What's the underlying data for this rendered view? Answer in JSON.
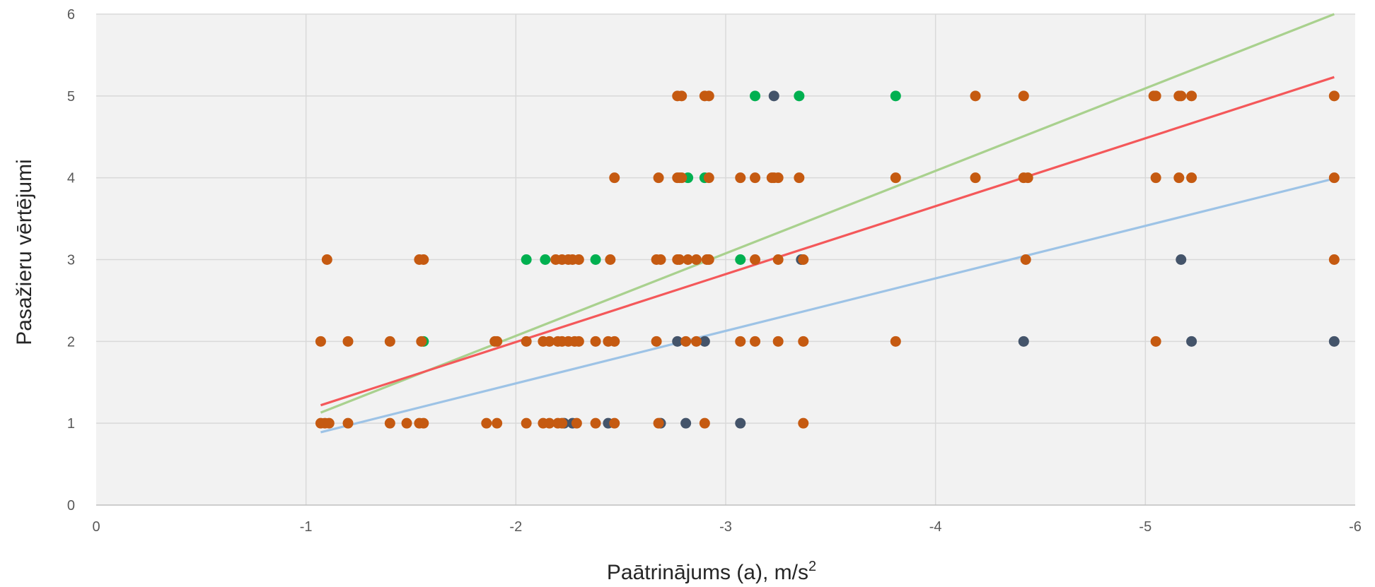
{
  "chart_data": {
    "type": "scatter",
    "title": "",
    "xlabel": "Paātrinājums (a), m/s",
    "xlabel_superscript": "2",
    "ylabel": "Pasažieru vērtējumi",
    "xlim": [
      0,
      -6
    ],
    "ylim": [
      0,
      6
    ],
    "x_ticks": [
      0,
      -1,
      -2,
      -3,
      -4,
      -5,
      -6
    ],
    "y_ticks": [
      0,
      1,
      2,
      3,
      4,
      5,
      6
    ],
    "grid": true,
    "plot_background": "#f2f2f2",
    "gridline_color": "#d9d9d9",
    "series": [
      {
        "color": "#00b050",
        "points": [
          [
            -3.14,
            5
          ],
          [
            -3.35,
            5
          ],
          [
            -3.81,
            5
          ],
          [
            -2.82,
            4
          ],
          [
            -2.9,
            4
          ],
          [
            -2.05,
            3
          ],
          [
            -2.14,
            3
          ],
          [
            -2.38,
            3
          ],
          [
            -3.07,
            3
          ],
          [
            -1.56,
            2
          ]
        ]
      },
      {
        "color": "#44546a",
        "points": [
          [
            -3.23,
            5
          ],
          [
            -3.36,
            3
          ],
          [
            -5.17,
            3
          ],
          [
            -2.77,
            2
          ],
          [
            -2.9,
            2
          ],
          [
            -4.42,
            2
          ],
          [
            -5.22,
            2
          ],
          [
            -5.9,
            2
          ],
          [
            -2.23,
            1
          ],
          [
            -2.27,
            1
          ],
          [
            -2.44,
            1
          ],
          [
            -2.69,
            1
          ],
          [
            -2.81,
            1
          ],
          [
            -3.07,
            1
          ]
        ]
      },
      {
        "color": "#c55a11",
        "points": [
          [
            -2.77,
            5
          ],
          [
            -2.79,
            5
          ],
          [
            -2.9,
            5
          ],
          [
            -2.92,
            5
          ],
          [
            -4.19,
            5
          ],
          [
            -4.42,
            5
          ],
          [
            -5.04,
            5
          ],
          [
            -5.05,
            5
          ],
          [
            -5.16,
            5
          ],
          [
            -5.17,
            5
          ],
          [
            -5.22,
            5
          ],
          [
            -5.9,
            5
          ],
          [
            -2.47,
            4
          ],
          [
            -2.68,
            4
          ],
          [
            -2.77,
            4
          ],
          [
            -2.78,
            4
          ],
          [
            -2.79,
            4
          ],
          [
            -2.92,
            4
          ],
          [
            -3.07,
            4
          ],
          [
            -3.14,
            4
          ],
          [
            -3.22,
            4
          ],
          [
            -3.23,
            4
          ],
          [
            -3.25,
            4
          ],
          [
            -3.35,
            4
          ],
          [
            -3.81,
            4
          ],
          [
            -4.19,
            4
          ],
          [
            -4.42,
            4
          ],
          [
            -4.44,
            4
          ],
          [
            -5.05,
            4
          ],
          [
            -5.16,
            4
          ],
          [
            -5.22,
            4
          ],
          [
            -5.9,
            4
          ],
          [
            -1.1,
            3
          ],
          [
            -1.54,
            3
          ],
          [
            -1.56,
            3
          ],
          [
            -2.19,
            3
          ],
          [
            -2.22,
            3
          ],
          [
            -2.25,
            3
          ],
          [
            -2.27,
            3
          ],
          [
            -2.3,
            3
          ],
          [
            -2.45,
            3
          ],
          [
            -2.67,
            3
          ],
          [
            -2.69,
            3
          ],
          [
            -2.77,
            3
          ],
          [
            -2.78,
            3
          ],
          [
            -2.82,
            3
          ],
          [
            -2.86,
            3
          ],
          [
            -2.91,
            3
          ],
          [
            -2.92,
            3
          ],
          [
            -3.14,
            3
          ],
          [
            -3.25,
            3
          ],
          [
            -3.37,
            3
          ],
          [
            -4.43,
            3
          ],
          [
            -5.9,
            3
          ],
          [
            -1.07,
            2
          ],
          [
            -1.2,
            2
          ],
          [
            -1.4,
            2
          ],
          [
            -1.55,
            2
          ],
          [
            -1.9,
            2
          ],
          [
            -1.91,
            2
          ],
          [
            -2.05,
            2
          ],
          [
            -2.13,
            2
          ],
          [
            -2.16,
            2
          ],
          [
            -2.2,
            2
          ],
          [
            -2.22,
            2
          ],
          [
            -2.25,
            2
          ],
          [
            -2.28,
            2
          ],
          [
            -2.3,
            2
          ],
          [
            -2.38,
            2
          ],
          [
            -2.44,
            2
          ],
          [
            -2.47,
            2
          ],
          [
            -2.67,
            2
          ],
          [
            -2.81,
            2
          ],
          [
            -2.86,
            2
          ],
          [
            -3.07,
            2
          ],
          [
            -3.14,
            2
          ],
          [
            -3.25,
            2
          ],
          [
            -3.37,
            2
          ],
          [
            -3.81,
            2
          ],
          [
            -5.05,
            2
          ],
          [
            -1.07,
            1
          ],
          [
            -1.09,
            1
          ],
          [
            -1.11,
            1
          ],
          [
            -1.2,
            1
          ],
          [
            -1.4,
            1
          ],
          [
            -1.48,
            1
          ],
          [
            -1.54,
            1
          ],
          [
            -1.56,
            1
          ],
          [
            -1.86,
            1
          ],
          [
            -1.91,
            1
          ],
          [
            -2.05,
            1
          ],
          [
            -2.13,
            1
          ],
          [
            -2.16,
            1
          ],
          [
            -2.2,
            1
          ],
          [
            -2.22,
            1
          ],
          [
            -2.29,
            1
          ],
          [
            -2.38,
            1
          ],
          [
            -2.47,
            1
          ],
          [
            -2.68,
            1
          ],
          [
            -2.9,
            1
          ],
          [
            -3.37,
            1
          ]
        ]
      }
    ],
    "trendlines": [
      {
        "color": "#a9d18e",
        "x": [
          -1.07,
          -5.9
        ],
        "y": [
          1.13,
          6.0
        ]
      },
      {
        "color": "#f4585a",
        "x": [
          -1.07,
          -5.9
        ],
        "y": [
          1.22,
          5.23
        ]
      },
      {
        "color": "#9dc3e6",
        "x": [
          -1.07,
          -5.9
        ],
        "y": [
          0.89,
          3.99
        ]
      }
    ]
  }
}
